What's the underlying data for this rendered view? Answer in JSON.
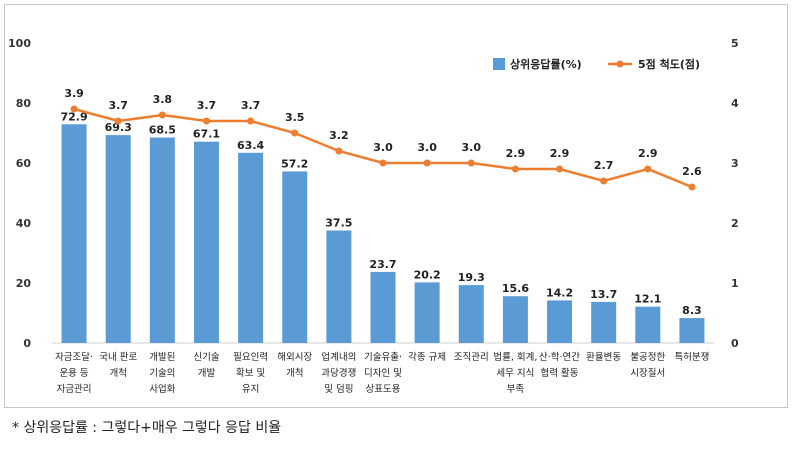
{
  "chart_data": {
    "type": "bar",
    "categories": [
      [
        "자금조달·",
        "운용 등",
        "자금관리"
      ],
      [
        "국내 판로",
        "개척"
      ],
      [
        "개발된",
        "기술의",
        "사업화"
      ],
      [
        "신기술",
        "개발"
      ],
      [
        "필요인력",
        "확보 및",
        "유지"
      ],
      [
        "해외시장",
        "개척"
      ],
      [
        "업계내의",
        "과당경쟁",
        "및 덤핑"
      ],
      [
        "기술유출·",
        "디자인 및",
        "상표도용"
      ],
      [
        "각종 규제"
      ],
      [
        "조직관리"
      ],
      [
        "법률, 회계,",
        "세무 지식",
        "부족"
      ],
      [
        "산·학·연간",
        "협력 활동"
      ],
      [
        "환율변동"
      ],
      [
        "불공정한",
        "시장질서"
      ],
      [
        "특허분쟁"
      ]
    ],
    "series": [
      {
        "name": "상위응답률(%)",
        "type": "bar",
        "axis": "left",
        "color": "#5b9bd5",
        "values": [
          72.9,
          69.3,
          68.5,
          67.1,
          63.4,
          57.2,
          37.5,
          23.7,
          20.2,
          19.3,
          15.6,
          14.2,
          13.7,
          12.1,
          8.3
        ],
        "labels": [
          "72.9",
          "69.3",
          "68.5",
          "67.1",
          "63.4",
          "57.2",
          "37.5",
          "23.7",
          "20.2",
          "19.3",
          "15.6",
          "14.2",
          "13.7",
          "12.1",
          "8.3"
        ]
      },
      {
        "name": "5점 척도(점)",
        "type": "line",
        "axis": "right",
        "color": "#ed7d31",
        "values": [
          3.9,
          3.7,
          3.8,
          3.7,
          3.7,
          3.5,
          3.2,
          3.0,
          3.0,
          3.0,
          2.9,
          2.9,
          2.7,
          2.9,
          2.6
        ],
        "labels": [
          "3.9",
          "3.7",
          "3.8",
          "3.7",
          "3.7",
          "3.5",
          "3.2",
          "3.0",
          "3.0",
          "3.0",
          "2.9",
          "2.9",
          "2.7",
          "2.9",
          "2.6"
        ]
      }
    ],
    "ylim": [
      0,
      100
    ],
    "yticks": [
      "0",
      "20",
      "40",
      "60",
      "80",
      "100"
    ],
    "y2lim": [
      0,
      5
    ],
    "y2ticks": [
      "0",
      "1",
      "2",
      "3",
      "4",
      "5"
    ],
    "grid": false,
    "legend": "top-right"
  },
  "footnote": "* 상위응답률 : 그렇다+매우 그렇다 응답 비율"
}
